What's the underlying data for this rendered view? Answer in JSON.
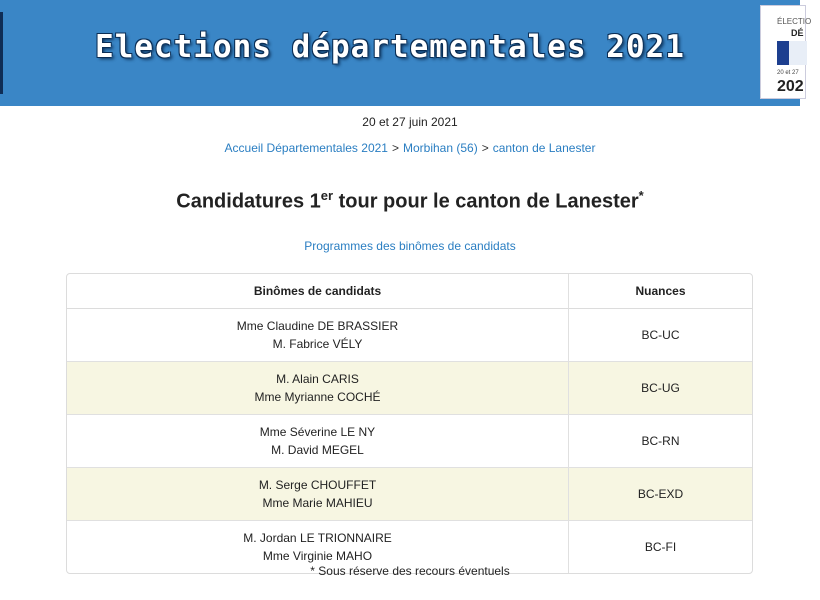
{
  "banner": {
    "title": "Elections départementales 2021"
  },
  "logo": {
    "line1": "ÉLECTIO",
    "line2": "DÉ",
    "line3": "20 et 27",
    "line4": "202"
  },
  "dates": "20 et 27 juin 2021",
  "breadcrumb": [
    {
      "label": "Accueil Départementales 2021"
    },
    {
      "label": "Morbihan (56)"
    },
    {
      "label": "canton de Lanester"
    }
  ],
  "breadcrumb_separator": ">",
  "heading": {
    "before": "Candidatures 1",
    "sup": "er",
    "after": " tour pour le canton de Lanester",
    "star": "*"
  },
  "programmes_link": "Programmes des binômes de candidats",
  "table": {
    "headers": [
      "Binômes de candidats",
      "Nuances"
    ],
    "rows": [
      {
        "candidate1": "Mme Claudine DE BRASSIER",
        "candidate2": "M. Fabrice VÉLY",
        "nuance": "BC-UC"
      },
      {
        "candidate1": "M. Alain CARIS",
        "candidate2": "Mme Myrianne COCHÉ",
        "nuance": "BC-UG"
      },
      {
        "candidate1": "Mme Séverine LE NY",
        "candidate2": "M. David MEGEL",
        "nuance": "BC-RN"
      },
      {
        "candidate1": "M. Serge CHOUFFET",
        "candidate2": "Mme Marie MAHIEU",
        "nuance": "BC-EXD"
      },
      {
        "candidate1": "M. Jordan LE TRIONNAIRE",
        "candidate2": "Mme Virginie MAHO",
        "nuance": "BC-FI"
      }
    ]
  },
  "footnote": "* Sous réserve des recours éventuels",
  "colors": {
    "banner": "#3a86c6",
    "link": "#2a7ec2",
    "row_alt": "#f7f6e2"
  }
}
